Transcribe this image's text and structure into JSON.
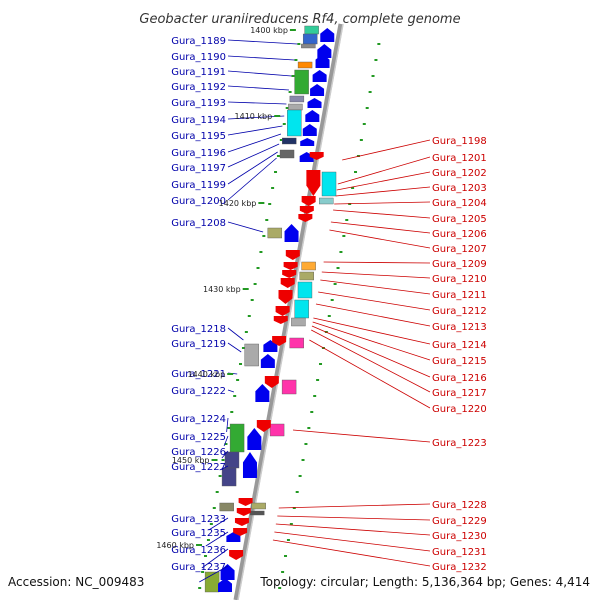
{
  "title": "Geobacter uraniireducens Rf4, complete genome",
  "accession": "Accession: NC_009483",
  "summary": "Topology: circular; Length: 5,136,364 bp; Genes: 4,414",
  "colors": {
    "left_label": "#0000aa",
    "right_label": "#cc0000",
    "plus_arrow": "#0000ee",
    "minus_arrow": "#ee0000",
    "axis": "#999999",
    "tick": "#229922"
  },
  "kbp_ticks": [
    {
      "label": "1400 kbp"
    },
    {
      "label": "1410 kbp"
    },
    {
      "label": "1420 kbp"
    },
    {
      "label": "1430 kbp"
    },
    {
      "label": "1440 kbp"
    },
    {
      "label": "1450 kbp"
    },
    {
      "label": "1460 kbp"
    }
  ],
  "left_genes": [
    "Gura_1189",
    "Gura_1190",
    "Gura_1191",
    "Gura_1192",
    "Gura_1193",
    "Gura_1194",
    "Gura_1195",
    "Gura_1196",
    "Gura_1197",
    "Gura_1199",
    "Gura_1200",
    "Gura_1208",
    "Gura_1218",
    "Gura_1219",
    "Gura_1221",
    "Gura_1222",
    "Gura_1224",
    "Gura_1225",
    "Gura_1226",
    "Gura_1227",
    "Gura_1233",
    "Gura_1235",
    "Gura_1236",
    "Gura_1237"
  ],
  "right_genes": [
    "Gura_1198",
    "Gura_1201",
    "Gura_1202",
    "Gura_1203",
    "Gura_1204",
    "Gura_1205",
    "Gura_1206",
    "Gura_1207",
    "Gura_1209",
    "Gura_1210",
    "Gura_1211",
    "Gura_1212",
    "Gura_1213",
    "Gura_1214",
    "Gura_1215",
    "Gura_1216",
    "Gura_1217",
    "Gura_1220",
    "Gura_1223",
    "Gura_1228",
    "Gura_1229",
    "Gura_1230",
    "Gura_1231",
    "Gura_1232"
  ]
}
